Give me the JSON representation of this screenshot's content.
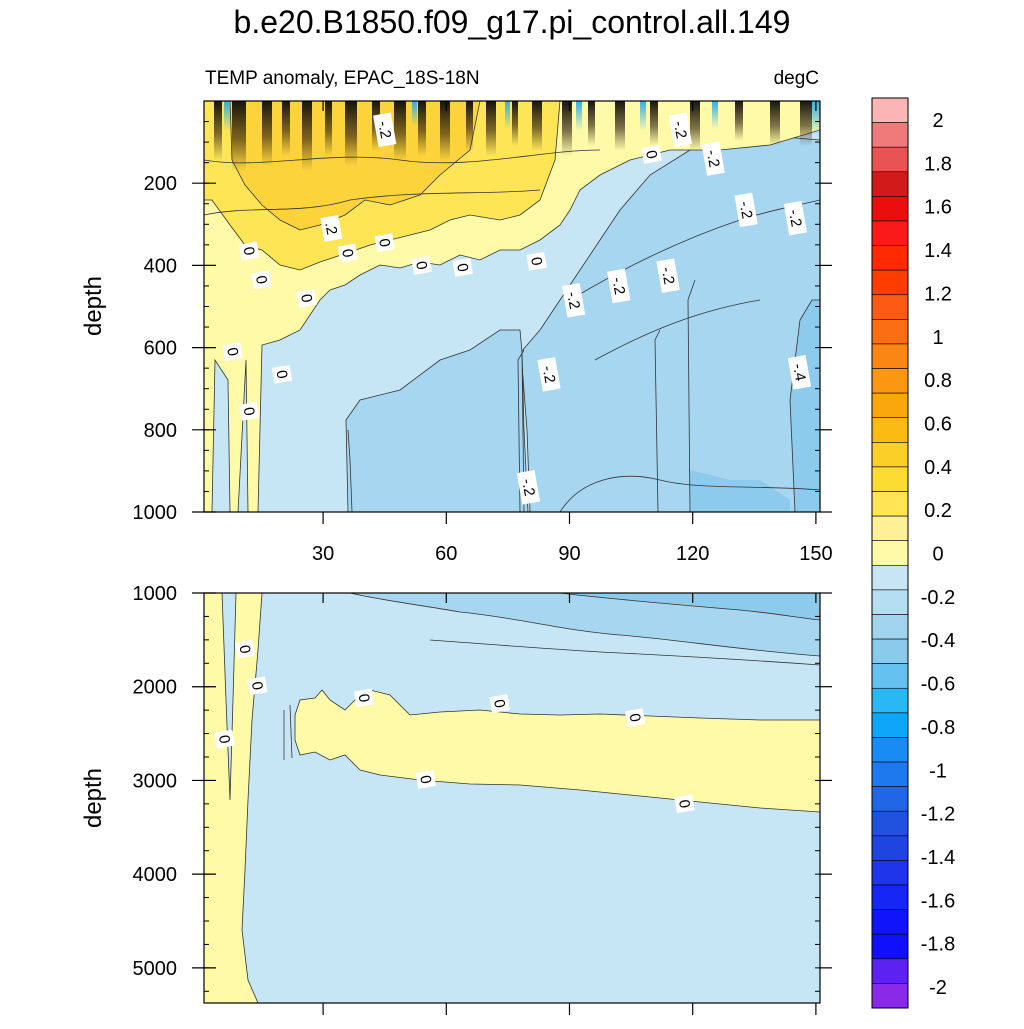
{
  "title": "b.e20.B1850.f09_g17.pi_control.all.149",
  "subtitle_left": "TEMP anomaly, EPAC_18S-18N",
  "subtitle_right": "degC",
  "chart_data": [
    {
      "type": "heatmap",
      "name": "upper-panel",
      "variable": "TEMP anomaly",
      "region": "EPAC_18S-18N",
      "units": "degC",
      "xlabel": "",
      "ylabel": "depth",
      "xlim": [
        1,
        151
      ],
      "ylim": [
        0,
        1000
      ],
      "y_reversed": true,
      "x_ticks": [
        30,
        60,
        90,
        120,
        150
      ],
      "x_tick_labels": [
        "30",
        "60",
        "90",
        "120",
        "150"
      ],
      "y_ticks": [
        200,
        400,
        600,
        800,
        1000
      ],
      "y_tick_labels": [
        "200",
        "400",
        "600",
        "800",
        "1000"
      ],
      "contour_labels": [
        {
          "text": "-.2",
          "x": 45,
          "y": 70
        },
        {
          "text": "-.2",
          "x": 117,
          "y": 70
        },
        {
          "text": "0",
          "x": 110,
          "y": 130
        },
        {
          "text": "-.2",
          "x": 125,
          "y": 140
        },
        {
          "text": "-.2",
          "x": 133,
          "y": 265
        },
        {
          "text": "-.2",
          "x": 145,
          "y": 285
        },
        {
          "text": ".2",
          "x": 32,
          "y": 310
        },
        {
          "text": "0",
          "x": 45,
          "y": 345
        },
        {
          "text": "0",
          "x": 12,
          "y": 365
        },
        {
          "text": "0",
          "x": 36,
          "y": 370
        },
        {
          "text": "0",
          "x": 54,
          "y": 400
        },
        {
          "text": "0",
          "x": 64,
          "y": 405
        },
        {
          "text": "0",
          "x": 82,
          "y": 390
        },
        {
          "text": "-.2",
          "x": 114,
          "y": 425
        },
        {
          "text": "0",
          "x": 15,
          "y": 435
        },
        {
          "text": "-.2",
          "x": 102,
          "y": 450
        },
        {
          "text": "0",
          "x": 26,
          "y": 480
        },
        {
          "text": "-.2",
          "x": 91,
          "y": 485
        },
        {
          "text": "0",
          "x": 8,
          "y": 610
        },
        {
          "text": "0",
          "x": 20,
          "y": 665
        },
        {
          "text": "-.2",
          "x": 85,
          "y": 665
        },
        {
          "text": "-.4",
          "x": 146,
          "y": 660
        },
        {
          "text": "0",
          "x": 12,
          "y": 755
        },
        {
          "text": "-.2",
          "x": 80,
          "y": 940
        }
      ]
    },
    {
      "type": "heatmap",
      "name": "lower-panel",
      "variable": "TEMP anomaly",
      "units": "degC",
      "xlabel": "",
      "ylabel": "depth",
      "xlim": [
        1,
        151
      ],
      "ylim": [
        1000,
        5375
      ],
      "y_reversed": true,
      "x_ticks": [
        30,
        60,
        90,
        120,
        150
      ],
      "y_ticks": [
        1000,
        2000,
        3000,
        4000,
        5000
      ],
      "y_tick_labels": [
        "1000",
        "2000",
        "3000",
        "4000",
        "5000"
      ],
      "contour_labels": [
        {
          "text": "0",
          "x": 11,
          "y": 1600
        },
        {
          "text": "0",
          "x": 14,
          "y": 1990
        },
        {
          "text": "0",
          "x": 40,
          "y": 2120
        },
        {
          "text": "0",
          "x": 73,
          "y": 2180
        },
        {
          "text": "0",
          "x": 106,
          "y": 2330
        },
        {
          "text": "0",
          "x": 6,
          "y": 2560
        },
        {
          "text": "0",
          "x": 55,
          "y": 2990
        },
        {
          "text": "0",
          "x": 118,
          "y": 3250
        }
      ]
    }
  ],
  "colorbar": {
    "levels": [
      "2",
      "1.8",
      "1.6",
      "1.4",
      "1.2",
      "1",
      "0.8",
      "0.6",
      "0.4",
      "0.2",
      "0",
      "-0.2",
      "-0.4",
      "-0.6",
      "-0.8",
      "-1",
      "-1.2",
      "-1.4",
      "-1.6",
      "-1.8",
      "-2"
    ],
    "colors": [
      "#fbb5b5",
      "#f07a7a",
      "#e85454",
      "#d21a1a",
      "#ea0e0e",
      "#fa1a1a",
      "#ff2a00",
      "#ff3d00",
      "#ff5a14",
      "#fb6e14",
      "#fb8614",
      "#fb9712",
      "#faa70e",
      "#fbba14",
      "#fcce28",
      "#fcdc32",
      "#fde556",
      "#fef095",
      "#fefaa8",
      "#c7e6f5",
      "#b6def2",
      "#a0d4ef",
      "#8acaeb",
      "#65c2f0",
      "#2ab8f5",
      "#0ea7f7",
      "#188cf2",
      "#1e78ee",
      "#2066e6",
      "#2052df",
      "#2044e0",
      "#1e35ec",
      "#1626f4",
      "#1014fa",
      "#1010ff",
      "#5b22f2",
      "#8a2ae8"
    ]
  }
}
